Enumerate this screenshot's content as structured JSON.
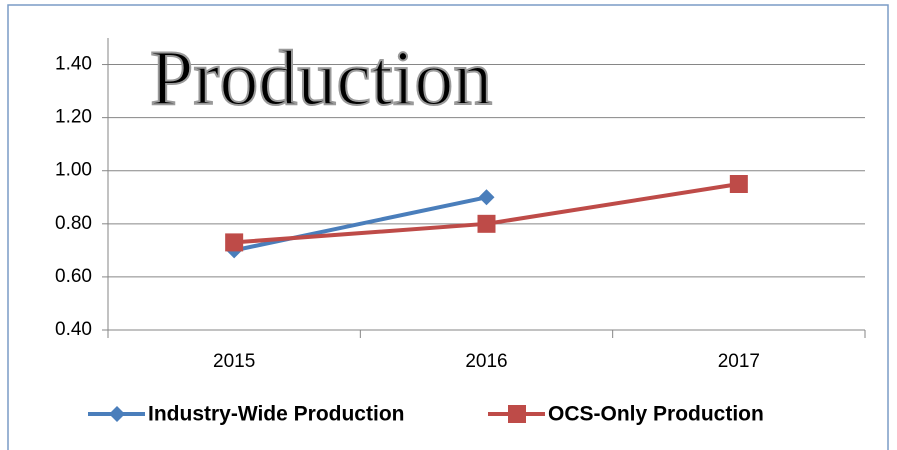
{
  "chart_data": {
    "type": "line",
    "title": "Production",
    "categories": [
      "2015",
      "2016",
      "2017"
    ],
    "series": [
      {
        "name": "Industry-Wide Production",
        "color": "#4a7ebb",
        "marker": "diamond",
        "values": [
          0.7,
          0.9,
          null
        ]
      },
      {
        "name": "OCS-Only Production",
        "color": "#be4b48",
        "marker": "square",
        "values": [
          0.73,
          0.8,
          0.95
        ]
      }
    ],
    "ylim": [
      0.4,
      1.5
    ],
    "yticks": [
      {
        "value": 0.4,
        "label": "0.40"
      },
      {
        "value": 0.6,
        "label": "0.60"
      },
      {
        "value": 0.8,
        "label": "0.80"
      },
      {
        "value": 1.0,
        "label": "1.00"
      },
      {
        "value": 1.2,
        "label": "1.20"
      },
      {
        "value": 1.4,
        "label": "1.40"
      }
    ],
    "grid": true,
    "legend": "bottom"
  }
}
